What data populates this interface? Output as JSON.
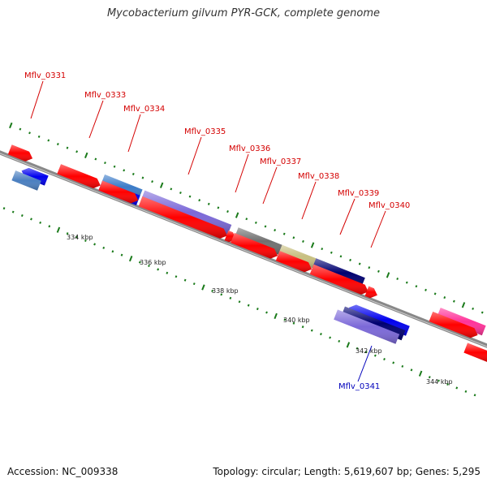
{
  "title": "Mycobacterium gilvum PYR-GCK, complete genome",
  "footer": {
    "accession": "Accession: NC_009338",
    "topology": "Topology: circular; Length: 5,619,607 bp; Genes: 5,295"
  },
  "colors": {
    "background": "#ffffff",
    "backbone": "#888888",
    "tick": "#1a7a1a",
    "label_forward": "#d40000",
    "label_reverse": "#0000bb"
  },
  "tick_labels": [
    "334 kbp",
    "336 kbp",
    "338 kbp",
    "340 kbp",
    "342 kbp",
    "344 kbp"
  ],
  "gene_labels": [
    {
      "text": "Mflv_0331",
      "strand": "forward"
    },
    {
      "text": "Mflv_0333",
      "strand": "forward"
    },
    {
      "text": "Mflv_0334",
      "strand": "forward"
    },
    {
      "text": "Mflv_0335",
      "strand": "forward"
    },
    {
      "text": "Mflv_0336",
      "strand": "forward"
    },
    {
      "text": "Mflv_0337",
      "strand": "forward"
    },
    {
      "text": "Mflv_0338",
      "strand": "forward"
    },
    {
      "text": "Mflv_0339",
      "strand": "forward"
    },
    {
      "text": "Mflv_0340",
      "strand": "forward"
    },
    {
      "text": "Mflv_0341",
      "strand": "reverse"
    }
  ]
}
